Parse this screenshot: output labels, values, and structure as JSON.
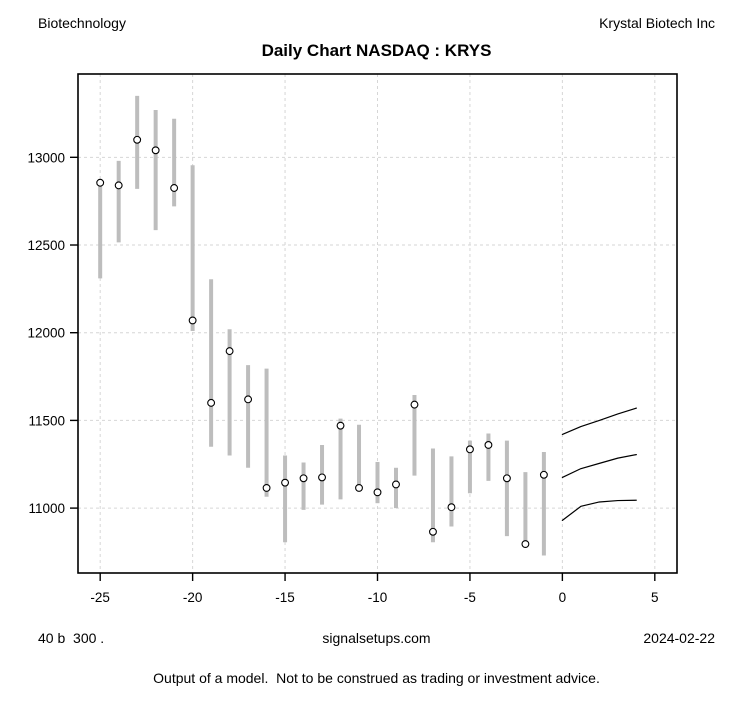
{
  "header": {
    "sector": "Biotechnology",
    "company": "Krystal Biotech Inc",
    "title": "Daily Chart NASDAQ : KRYS"
  },
  "footer": {
    "left": "40 b  300 .",
    "center": "signalsetups.com",
    "right": "2024-02-22",
    "disclaimer": "Output of a model.  Not to be construed as trading or investment advice."
  },
  "chart_data": {
    "type": "bar",
    "subtype": "daily high-low range bars with close markers and 3-line forecast fan",
    "title": "Daily Chart NASDAQ : KRYS",
    "xlabel": "",
    "ylabel": "",
    "xlim": [
      -26.2,
      6.2
    ],
    "ylim": [
      10630,
      13475
    ],
    "x_ticks": [
      -25,
      -20,
      -15,
      -10,
      -5,
      0,
      5
    ],
    "y_ticks": [
      11000,
      11500,
      12000,
      12500,
      13000
    ],
    "grid": true,
    "bars": {
      "x": [
        -25,
        -24,
        -23,
        -22,
        -21,
        -20,
        -19,
        -18,
        -17,
        -16,
        -15,
        -14,
        -13,
        -12,
        -11,
        -10,
        -9,
        -8,
        -7,
        -6,
        -5,
        -4,
        -3,
        -2,
        -1
      ],
      "high": [
        12870,
        12980,
        13350,
        13270,
        13220,
        12955,
        12305,
        12020,
        11815,
        11795,
        11300,
        11260,
        11360,
        11510,
        11475,
        11263,
        11230,
        11645,
        11340,
        11295,
        11385,
        11425,
        11385,
        11205,
        11320
      ],
      "low": [
        12310,
        12515,
        12820,
        12585,
        12720,
        12010,
        11350,
        11300,
        11230,
        11065,
        10805,
        10990,
        11020,
        11050,
        11100,
        11028,
        11000,
        11185,
        10805,
        10895,
        11085,
        11155,
        10840,
        10785,
        10730
      ],
      "close": [
        12855,
        12840,
        13100,
        13040,
        12825,
        12070,
        11600,
        11895,
        11620,
        11115,
        11145,
        11170,
        11175,
        11470,
        11115,
        11090,
        11135,
        11590,
        10865,
        11005,
        11335,
        11360,
        11170,
        10795,
        11190
      ]
    },
    "forecast": [
      {
        "name": "upper",
        "x": [
          0,
          1,
          2,
          3,
          4
        ],
        "y": [
          11420,
          11465,
          11500,
          11537,
          11570
        ]
      },
      {
        "name": "middle",
        "x": [
          0,
          1,
          2,
          3,
          4
        ],
        "y": [
          11175,
          11225,
          11255,
          11285,
          11305
        ]
      },
      {
        "name": "lower",
        "x": [
          0,
          1,
          2,
          3,
          4
        ],
        "y": [
          10930,
          11010,
          11035,
          11043,
          11045
        ]
      }
    ],
    "colors": {
      "bar": "#bdbdbd",
      "close_marker_stroke": "#000000",
      "close_marker_fill": "#ffffff",
      "forecast_line": "#000000",
      "grid": "#d6d6d6",
      "axis": "#000000",
      "text": "#000000",
      "background": "#ffffff"
    }
  }
}
